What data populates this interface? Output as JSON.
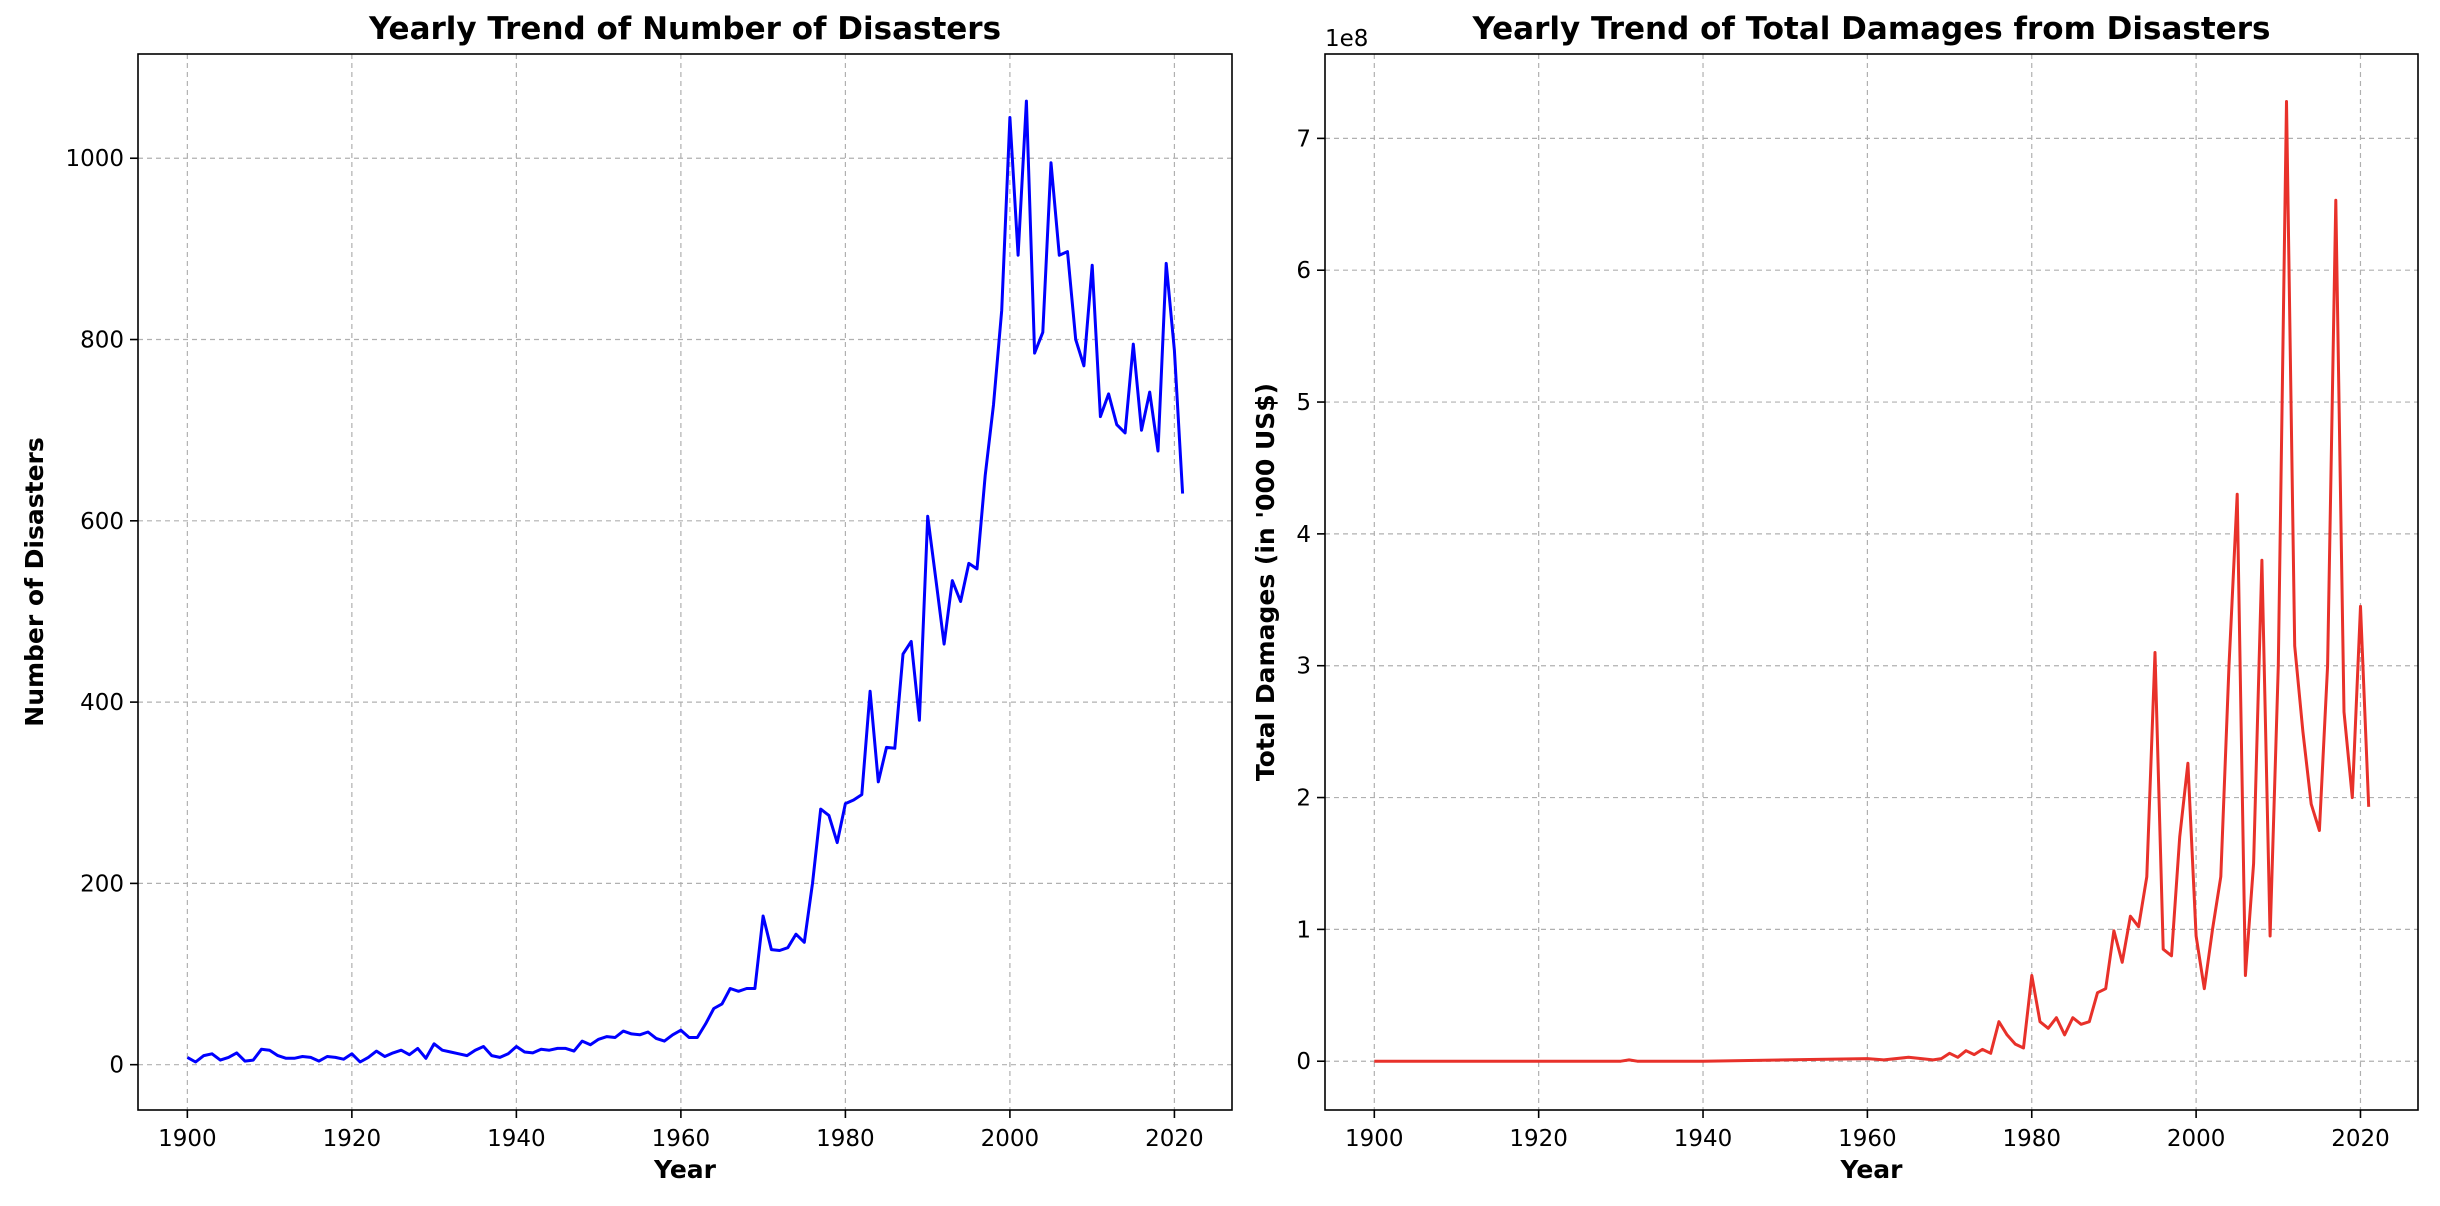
{
  "chart_data": [
    {
      "type": "line",
      "title": "Yearly Trend of Number of Disasters",
      "xlabel": "Year",
      "ylabel": "Number of Disasters",
      "xlim": [
        1894,
        2027
      ],
      "ylim": [
        -50,
        1115
      ],
      "xticks": [
        1900,
        1920,
        1940,
        1960,
        1980,
        2000,
        2020
      ],
      "yticks": [
        0,
        200,
        400,
        600,
        800,
        1000
      ],
      "grid": true,
      "color": "#0000ff",
      "series": [
        {
          "x": [
            1900,
            1901,
            1902,
            1903,
            1904,
            1905,
            1906,
            1907,
            1908,
            1909,
            1910,
            1911,
            1912,
            1913,
            1914,
            1915,
            1916,
            1917,
            1918,
            1919,
            1920,
            1921,
            1922,
            1923,
            1924,
            1925,
            1926,
            1927,
            1928,
            1929,
            1930,
            1931,
            1932,
            1933,
            1934,
            1935,
            1936,
            1937,
            1938,
            1939,
            1940,
            1941,
            1942,
            1943,
            1944,
            1945,
            1946,
            1947,
            1948,
            1949,
            1950,
            1951,
            1952,
            1953,
            1954,
            1955,
            1956,
            1957,
            1958,
            1959,
            1960,
            1961,
            1962,
            1963,
            1964,
            1965,
            1966,
            1967,
            1968,
            1969,
            1970,
            1971,
            1972,
            1973,
            1974,
            1975,
            1976,
            1977,
            1978,
            1979,
            1980,
            1981,
            1982,
            1983,
            1984,
            1985,
            1986,
            1987,
            1988,
            1989,
            1990,
            1991,
            1992,
            1993,
            1994,
            1995,
            1996,
            1997,
            1998,
            1999,
            2000,
            2001,
            2002,
            2003,
            2004,
            2005,
            2006,
            2007,
            2008,
            2009,
            2010,
            2011,
            2012,
            2013,
            2014,
            2015,
            2016,
            2017,
            2018,
            2019,
            2020,
            2021
          ],
          "values": [
            8,
            3,
            10,
            12,
            5,
            8,
            13,
            4,
            5,
            17,
            16,
            10,
            7,
            7,
            9,
            8,
            4,
            9,
            8,
            6,
            12,
            3,
            8,
            15,
            9,
            13,
            16,
            11,
            18,
            7,
            23,
            16,
            14,
            12,
            10,
            16,
            20,
            10,
            8,
            12,
            20,
            14,
            13,
            17,
            16,
            18,
            18,
            15,
            26,
            22,
            28,
            31,
            30,
            37,
            34,
            33,
            36,
            29,
            26,
            33,
            38,
            30,
            30,
            45,
            62,
            67,
            84,
            81,
            84,
            84,
            164,
            127,
            126,
            129,
            144,
            135,
            200,
            282,
            275,
            245,
            288,
            292,
            298,
            412,
            312,
            350,
            349,
            453,
            467,
            380,
            605,
            535,
            464,
            534,
            511,
            553,
            547,
            650,
            728,
            832,
            1045,
            893,
            1063,
            785,
            808,
            995,
            893,
            897,
            800,
            771,
            882,
            715,
            740,
            706,
            697,
            795,
            700,
            742,
            677,
            884,
            788,
            630
          ]
        }
      ]
    },
    {
      "type": "line",
      "title": "Yearly Trend of Total Damages from Disasters",
      "xlabel": "Year",
      "ylabel": "Total Damages (in '000 US$)",
      "y_scale_label": "1e8",
      "xlim": [
        1894,
        2027
      ],
      "ylim": [
        -0.37,
        7.64
      ],
      "y_unit": "1e8 ('000 US$)",
      "xticks": [
        1900,
        1920,
        1940,
        1960,
        1980,
        2000,
        2020
      ],
      "yticks": [
        0,
        1,
        2,
        3,
        4,
        5,
        6,
        7
      ],
      "grid": true,
      "color": "#e8312a",
      "series": [
        {
          "x": [
            1900,
            1910,
            1920,
            1930,
            1931,
            1932,
            1940,
            1950,
            1960,
            1962,
            1965,
            1968,
            1969,
            1970,
            1971,
            1972,
            1973,
            1974,
            1975,
            1976,
            1977,
            1978,
            1979,
            1980,
            1981,
            1982,
            1983,
            1984,
            1985,
            1986,
            1987,
            1988,
            1989,
            1990,
            1991,
            1992,
            1993,
            1994,
            1995,
            1996,
            1997,
            1998,
            1999,
            2000,
            2001,
            2002,
            2003,
            2004,
            2005,
            2006,
            2007,
            2008,
            2009,
            2010,
            2011,
            2012,
            2013,
            2014,
            2015,
            2016,
            2017,
            2018,
            2019,
            2020,
            2021
          ],
          "values": [
            0.0,
            0.0,
            0.0,
            0.0,
            0.01,
            0.0,
            0.0,
            0.01,
            0.02,
            0.01,
            0.03,
            0.01,
            0.02,
            0.06,
            0.03,
            0.08,
            0.05,
            0.09,
            0.06,
            0.3,
            0.2,
            0.13,
            0.1,
            0.65,
            0.3,
            0.25,
            0.33,
            0.2,
            0.33,
            0.28,
            0.3,
            0.52,
            0.55,
            0.99,
            0.75,
            1.1,
            1.02,
            1.4,
            3.1,
            0.85,
            0.8,
            1.7,
            2.26,
            0.95,
            0.55,
            1.0,
            1.4,
            3.0,
            4.3,
            0.65,
            1.5,
            3.8,
            0.95,
            3.0,
            7.28,
            3.15,
            2.5,
            1.95,
            1.75,
            3.0,
            6.53,
            2.65,
            2.0,
            3.45,
            1.93
          ]
        }
      ]
    }
  ]
}
